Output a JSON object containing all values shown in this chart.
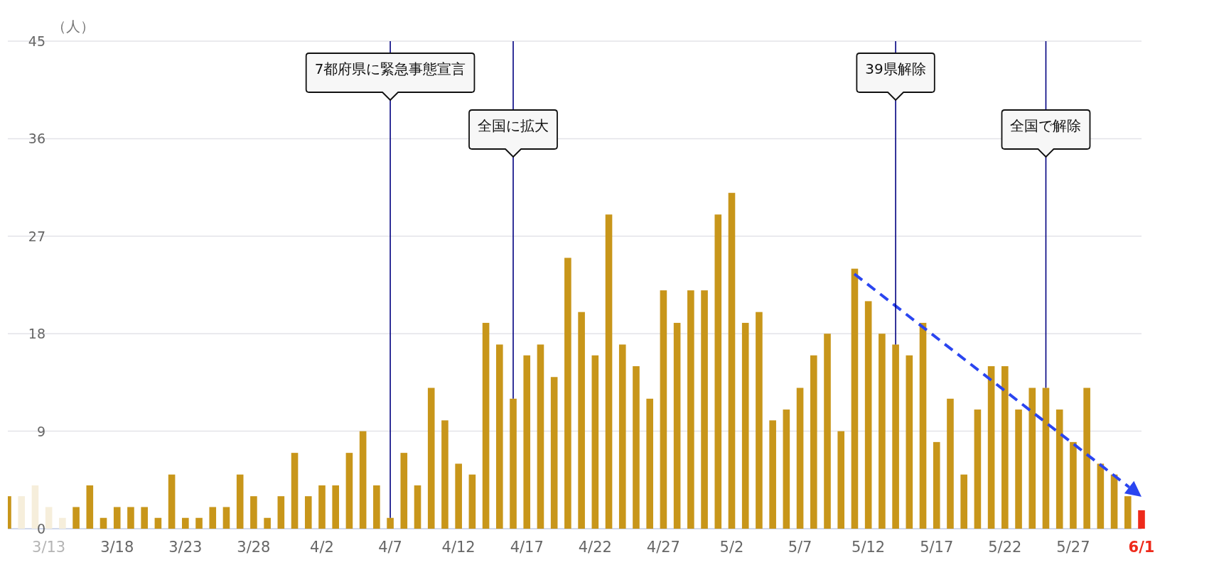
{
  "chart_data": {
    "type": "bar",
    "ylabel": "（人）",
    "x": [
      "--03-10",
      "--03-11",
      "--03-12",
      "--03-13",
      "--03-14",
      "--03-15",
      "--03-16",
      "--03-17",
      "--03-18",
      "--03-19",
      "--03-20",
      "--03-21",
      "--03-22",
      "--03-23",
      "--03-24",
      "--03-25",
      "--03-26",
      "--03-27",
      "--03-28",
      "--03-29",
      "--03-30",
      "--03-31",
      "--04-01",
      "--04-02",
      "--04-03",
      "--04-04",
      "--04-05",
      "--04-06",
      "--04-07",
      "--04-08",
      "--04-09",
      "--04-10",
      "--04-11",
      "--04-12",
      "--04-13",
      "--04-14",
      "--04-15",
      "--04-16",
      "--04-17",
      "--04-18",
      "--04-19",
      "--04-20",
      "--04-21",
      "--04-22",
      "--04-23",
      "--04-24",
      "--04-25",
      "--04-26",
      "--04-27",
      "--04-28",
      "--04-29",
      "--04-30",
      "--05-01",
      "--05-02",
      "--05-03",
      "--05-04",
      "--05-05",
      "--05-06",
      "--05-07",
      "--05-08",
      "--05-09",
      "--05-10",
      "--05-11",
      "--05-12",
      "--05-13",
      "--05-14",
      "--05-15",
      "--05-16",
      "--05-17",
      "--05-18",
      "--05-19",
      "--05-20",
      "--05-21",
      "--05-22",
      "--05-23",
      "--05-24",
      "--05-25",
      "--05-26",
      "--05-27",
      "--05-28",
      "--05-29",
      "--05-30",
      "--05-31",
      "--06-01"
    ],
    "values": [
      3,
      3,
      4,
      2,
      1,
      2,
      4,
      1,
      2,
      2,
      2,
      1,
      5,
      1,
      1,
      2,
      2,
      5,
      3,
      1,
      3,
      7,
      3,
      4,
      4,
      7,
      9,
      4,
      1,
      7,
      4,
      13,
      10,
      6,
      5,
      19,
      17,
      12,
      16,
      17,
      14,
      25,
      20,
      16,
      29,
      17,
      15,
      12,
      22,
      19,
      22,
      22,
      29,
      31,
      19,
      20,
      10,
      11,
      13,
      16,
      18,
      9,
      24,
      21,
      18,
      17,
      16,
      19,
      8,
      12,
      5,
      11,
      15,
      15,
      11,
      13,
      13,
      11,
      8,
      13,
      6,
      5,
      3,
      1.7
    ],
    "colors": [
      "#c8961a",
      "#f6eedb",
      "#f6eedb",
      "#f6eedb",
      "#f6eedb",
      "#c8961a",
      "#c8961a",
      "#c8961a",
      "#c8961a",
      "#c8961a",
      "#c8961a",
      "#c8961a",
      "#c8961a",
      "#c8961a",
      "#c8961a",
      "#c8961a",
      "#c8961a",
      "#c8961a",
      "#c8961a",
      "#c8961a",
      "#c8961a",
      "#c8961a",
      "#c8961a",
      "#c8961a",
      "#c8961a",
      "#c8961a",
      "#c8961a",
      "#c8961a",
      "#c8961a",
      "#c8961a",
      "#c8961a",
      "#c8961a",
      "#c8961a",
      "#c8961a",
      "#c8961a",
      "#c8961a",
      "#c8961a",
      "#c8961a",
      "#c8961a",
      "#c8961a",
      "#c8961a",
      "#c8961a",
      "#c8961a",
      "#c8961a",
      "#c8961a",
      "#c8961a",
      "#c8961a",
      "#c8961a",
      "#c8961a",
      "#c8961a",
      "#c8961a",
      "#c8961a",
      "#c8961a",
      "#c8961a",
      "#c8961a",
      "#c8961a",
      "#c8961a",
      "#c8961a",
      "#c8961a",
      "#c8961a",
      "#c8961a",
      "#c8961a",
      "#c8961a",
      "#c8961a",
      "#c8961a",
      "#c8961a",
      "#c8961a",
      "#c8961a",
      "#c8961a",
      "#c8961a",
      "#c8961a",
      "#c8961a",
      "#c8961a",
      "#c8961a",
      "#c8961a",
      "#c8961a",
      "#c8961a",
      "#c8961a",
      "#c8961a",
      "#c8961a",
      "#c8961a",
      "#c8961a",
      "#c8961a",
      "#ee2a1b"
    ],
    "xlim": [
      "--03-10",
      "--06-01"
    ],
    "xticks": [
      {
        "value": "--03-13",
        "label": "3/13"
      },
      {
        "value": "--03-18",
        "label": "3/18"
      },
      {
        "value": "--03-23",
        "label": "3/23"
      },
      {
        "value": "--03-28",
        "label": "3/28"
      },
      {
        "value": "--04-02",
        "label": "4/2"
      },
      {
        "value": "--04-07",
        "label": "4/7"
      },
      {
        "value": "--04-12",
        "label": "4/12"
      },
      {
        "value": "--04-17",
        "label": "4/17"
      },
      {
        "value": "--04-22",
        "label": "4/22"
      },
      {
        "value": "--04-27",
        "label": "4/27"
      },
      {
        "value": "--05-02",
        "label": "5/2"
      },
      {
        "value": "--05-07",
        "label": "5/7"
      },
      {
        "value": "--05-12",
        "label": "5/12"
      },
      {
        "value": "--05-17",
        "label": "5/17"
      },
      {
        "value": "--05-22",
        "label": "5/22"
      },
      {
        "value": "--05-27",
        "label": "5/27"
      },
      {
        "value": "--06-01",
        "label": "6/1"
      }
    ],
    "ylim": [
      0,
      45
    ],
    "yticks": [
      0,
      9,
      18,
      27,
      36,
      45
    ],
    "grid": "y",
    "ref_lines": [
      {
        "axis": "x",
        "value": "--04-07",
        "label": "7都府県に緊急事態宣言",
        "color": "#000080"
      },
      {
        "axis": "x",
        "value": "--04-16",
        "label": "全国に拡大",
        "color": "#000080"
      },
      {
        "axis": "x",
        "value": "--05-14",
        "label": "39県解除",
        "color": "#000080"
      },
      {
        "axis": "x",
        "value": "--05-25",
        "label": "全国で解除",
        "color": "#000080"
      }
    ]
  }
}
